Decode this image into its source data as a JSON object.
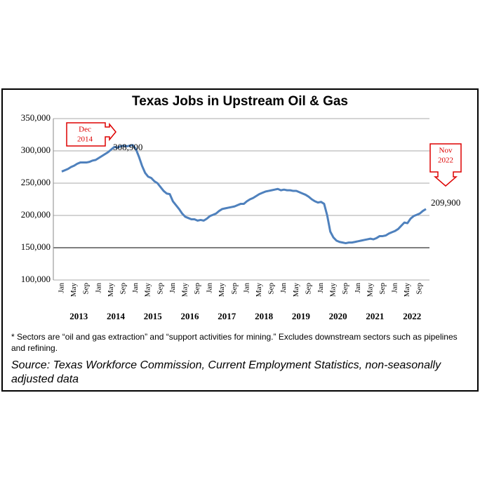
{
  "chart_data": {
    "type": "line",
    "title": "Texas Jobs in Upstream Oil & Gas",
    "categories": [
      "Jan",
      null,
      null,
      null,
      "May",
      null,
      null,
      null,
      "Sep",
      null,
      null,
      null,
      "Jan",
      null,
      null,
      null,
      "May",
      null,
      null,
      null,
      "Sep",
      null,
      null,
      null,
      "Jan",
      null,
      null,
      null,
      "May",
      null,
      null,
      null,
      "Sep",
      null,
      null,
      null,
      "Jan",
      null,
      null,
      null,
      "May",
      null,
      null,
      null,
      "Sep",
      null,
      null,
      null,
      "Jan",
      null,
      null,
      null,
      "May",
      null,
      null,
      null,
      "Sep",
      null,
      null,
      null,
      "Jan",
      null,
      null,
      null,
      "May",
      null,
      null,
      null,
      "Sep",
      null,
      null,
      null,
      "Jan",
      null,
      null,
      null,
      "May",
      null,
      null,
      null,
      "Sep",
      null,
      null,
      null,
      "Jan",
      null,
      null,
      null,
      "May",
      null,
      null,
      null,
      "Sep",
      null,
      null,
      null,
      "Jan",
      null,
      null,
      null,
      "May",
      null,
      null,
      null,
      "Sep",
      null,
      null,
      null,
      "Jan",
      null,
      null,
      null,
      "May",
      null,
      null,
      null,
      "Sep",
      null,
      null
    ],
    "year_labels": [
      "2013",
      "2014",
      "2015",
      "2016",
      "2017",
      "2018",
      "2019",
      "2020",
      "2021",
      "2022"
    ],
    "series": [
      {
        "color": "#4f81bd",
        "values": [
          268000,
          270000,
          272000,
          275000,
          277000,
          280000,
          282000,
          282000,
          282000,
          283000,
          285000,
          286000,
          289000,
          292000,
          295000,
          298000,
          302000,
          306000,
          305000,
          307000,
          308000,
          307000,
          308000,
          308900,
          303000,
          291000,
          277000,
          266000,
          260000,
          258000,
          253000,
          250000,
          244000,
          238000,
          234000,
          233000,
          222000,
          216000,
          210000,
          203000,
          198000,
          196000,
          194000,
          194000,
          192000,
          193000,
          192000,
          195000,
          199000,
          201000,
          203000,
          207000,
          210000,
          211000,
          212000,
          213000,
          214000,
          216000,
          218000,
          218000,
          222000,
          225000,
          227000,
          230000,
          233000,
          235000,
          237000,
          238000,
          239000,
          240000,
          241000,
          239000,
          240000,
          239000,
          239000,
          238000,
          238000,
          236000,
          234000,
          232000,
          229000,
          225000,
          222000,
          220000,
          221000,
          218000,
          200000,
          175000,
          166000,
          161000,
          159000,
          158000,
          157000,
          158000,
          158000,
          159000,
          160000,
          161000,
          162000,
          163000,
          164000,
          163000,
          165000,
          168000,
          168000,
          169000,
          172000,
          174000,
          176000,
          179000,
          184000,
          189000,
          188000,
          195000,
          199000,
          201000,
          203000,
          207000,
          209900
        ],
        "value_labels": [
          null,
          null,
          null,
          null,
          null,
          null,
          null,
          null,
          null,
          null,
          null,
          null,
          null,
          null,
          null,
          null,
          null,
          null,
          null,
          null,
          null,
          null,
          null,
          "308,900",
          null,
          null,
          null,
          null,
          null,
          null,
          null,
          null,
          null,
          null,
          null,
          null,
          null,
          null,
          null,
          null,
          null,
          null,
          null,
          null,
          null,
          null,
          null,
          null,
          null,
          null,
          null,
          null,
          null,
          null,
          null,
          null,
          null,
          null,
          null,
          null,
          null,
          null,
          null,
          null,
          null,
          null,
          null,
          null,
          null,
          null,
          null,
          null,
          null,
          null,
          null,
          null,
          null,
          null,
          null,
          null,
          null,
          null,
          null,
          null,
          null,
          null,
          null,
          null,
          null,
          null,
          null,
          null,
          null,
          null,
          null,
          null,
          null,
          null,
          null,
          null,
          null,
          null,
          null,
          null,
          null,
          null,
          null,
          null,
          null,
          null,
          null,
          null,
          null,
          null,
          null,
          null,
          null,
          null,
          "209,900"
        ]
      }
    ],
    "ylim": [
      100000,
      350000
    ],
    "yticks": [
      {
        "value": 100000,
        "label": "100,000"
      },
      {
        "value": 150000,
        "label": "150,000"
      },
      {
        "value": 200000,
        "label": "200,000"
      },
      {
        "value": 250000,
        "label": "250,000"
      },
      {
        "value": 300000,
        "label": "300,000"
      },
      {
        "value": 350000,
        "label": "350,000"
      }
    ],
    "grid": true,
    "annotations": [
      [
        "Dec",
        "2014"
      ],
      [
        "Nov",
        "2022"
      ]
    ],
    "footnote": "* Sectors are “oil and gas extraction” and “support activities for mining.” Excludes downstream sectors such as pipelines and refining.",
    "source": "Source: Texas Workforce Commission, Current Employment Statistics, non-seasonally adjusted data"
  }
}
